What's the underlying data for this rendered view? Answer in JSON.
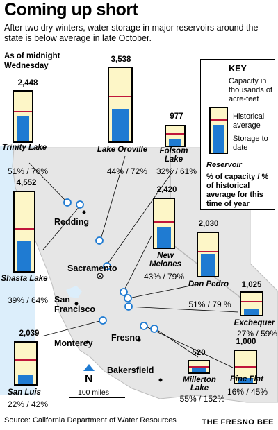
{
  "header": {
    "title": "Coming up short",
    "subtitle": "After two dry winters, water storage in major reservoirs around the state is below average in late October.",
    "as_of": "As of midnight Wednesday"
  },
  "key": {
    "title": "KEY",
    "capacity": "Capacity in thousands of acre-feet",
    "historical": "Historical average",
    "storage": "Storage to date",
    "reservoir": "Reservoir",
    "pct": "% of capacity / % of historical average for this time of year"
  },
  "chart_data": {
    "type": "bar",
    "reservoirs": [
      {
        "key": "trinity",
        "name": "Trinity Lake",
        "capacity": "2,448",
        "capacity_value": 2448,
        "pct_capacity": 51,
        "pct_historical": 76,
        "label": "51% / 76%"
      },
      {
        "key": "oroville",
        "name": "Lake Oroville",
        "capacity": "3,538",
        "capacity_value": 3538,
        "pct_capacity": 44,
        "pct_historical": 72,
        "label": "44% / 72%"
      },
      {
        "key": "folsom",
        "name": "Folsom Lake",
        "capacity": "977",
        "capacity_value": 977,
        "pct_capacity": 32,
        "pct_historical": 61,
        "label": "32% / 61%"
      },
      {
        "key": "shasta",
        "name": "Shasta Lake",
        "capacity": "4,552",
        "capacity_value": 4552,
        "pct_capacity": 39,
        "pct_historical": 64,
        "label": "39% / 64%"
      },
      {
        "key": "melones",
        "name": "New Melones",
        "capacity": "2,420",
        "capacity_value": 2420,
        "pct_capacity": 43,
        "pct_historical": 79,
        "label": "43% / 79%"
      },
      {
        "key": "donpedro",
        "name": "Don Pedro",
        "capacity": "2,030",
        "capacity_value": 2030,
        "pct_capacity": 51,
        "pct_historical": 79,
        "label": "51% / 79 %"
      },
      {
        "key": "exchequer",
        "name": "Exchequer",
        "capacity": "1,025",
        "capacity_value": 1025,
        "pct_capacity": 27,
        "pct_historical": 59,
        "label": "27% / 59%"
      },
      {
        "key": "sanluis",
        "name": "San Luis",
        "capacity": "2,039",
        "capacity_value": 2039,
        "pct_capacity": 22,
        "pct_historical": 42,
        "label": "22% / 42%"
      },
      {
        "key": "millerton",
        "name": "Millerton Lake",
        "capacity": "520",
        "capacity_value": 520,
        "pct_capacity": 55,
        "pct_historical": 152,
        "label": "55% / 152%"
      },
      {
        "key": "pineflat",
        "name": "Pine Flat",
        "capacity": "1,000",
        "capacity_value": 1000,
        "pct_capacity": 16,
        "pct_historical": 45,
        "label": "16% / 45%"
      }
    ]
  },
  "cities": {
    "redding": "Redding",
    "sacramento": "Sacramento",
    "sanfrancisco": "San Francisco",
    "monterey": "Monterey",
    "fresno": "Fresno",
    "bakersfield": "Bakersfield"
  },
  "map": {
    "north": "N",
    "scale": "100 miles",
    "ocean_color": "#dceefb",
    "land_color": "#e6e6e6",
    "lake_color": "#1f7bd2",
    "hist_color": "#c0163b",
    "tank_bg": "#fdf6c7"
  },
  "footer": {
    "source": "Source: California Department of Water Resources",
    "credit": "THE FRESNO BEE"
  }
}
